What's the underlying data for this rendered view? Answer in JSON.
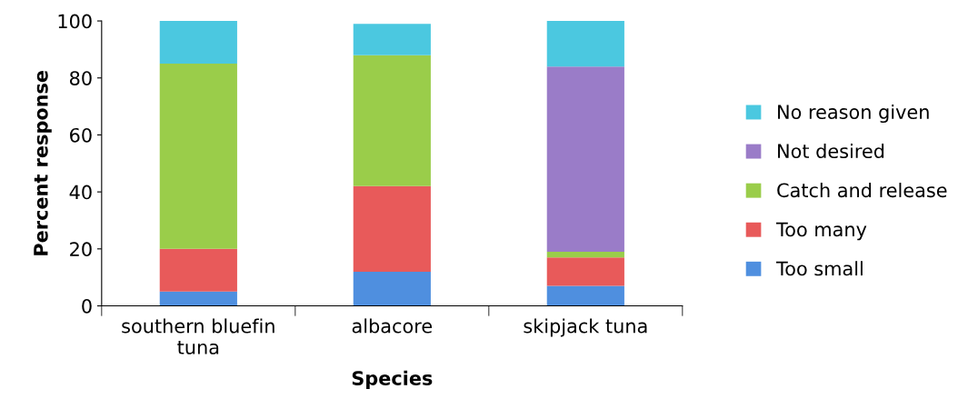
{
  "chart_data": {
    "type": "bar",
    "stacked": true,
    "xlabel": "Species",
    "ylabel": "Percent response",
    "categories": [
      "southern bluefin\ntuna",
      "albacore",
      "skipjack tuna"
    ],
    "series": [
      {
        "name": "Too small",
        "color": "#4f8fdf",
        "values": [
          5,
          12,
          7
        ]
      },
      {
        "name": "Too many",
        "color": "#e85a5a",
        "values": [
          15,
          30,
          10
        ]
      },
      {
        "name": "Catch and release",
        "color": "#9acd4a",
        "values": [
          65,
          46,
          2
        ]
      },
      {
        "name": "Not desired",
        "color": "#9a7cc8",
        "values": [
          0,
          0,
          65
        ]
      },
      {
        "name": "No reason given",
        "color": "#4bc8e0",
        "values": [
          15,
          11,
          16
        ]
      }
    ],
    "ylim": [
      0,
      100
    ],
    "yticks": [
      0,
      20,
      40,
      60,
      80,
      100
    ],
    "grid": false,
    "legend": "right"
  }
}
